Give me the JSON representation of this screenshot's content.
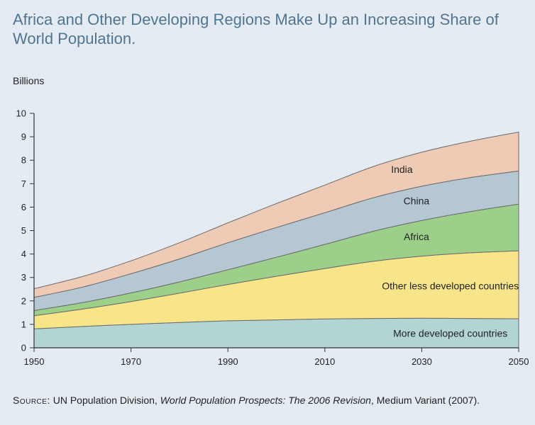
{
  "title": "Africa and Other Developing Regions Make Up an Increasing Share of World Population.",
  "source": {
    "label": "Source:",
    "text1": " UN Population Division, ",
    "italic": "World Population Prospects: The 2006 Revision",
    "text2": ", Medium Variant (2007)."
  },
  "chart_data": {
    "type": "area",
    "stacked": true,
    "title": "Africa and Other Developing Regions Make Up an Increasing Share of World Population.",
    "ylabel": "Billions",
    "xlabel": "",
    "x": [
      1950,
      1960,
      1970,
      1980,
      1990,
      2000,
      2010,
      2020,
      2030,
      2040,
      2050
    ],
    "xticks": [
      1950,
      1970,
      1990,
      2010,
      2030,
      2050
    ],
    "yticks": [
      0,
      1,
      2,
      3,
      4,
      5,
      6,
      7,
      8,
      9,
      10
    ],
    "xlim": [
      1950,
      2050
    ],
    "ylim": [
      0,
      10
    ],
    "grid": false,
    "series": [
      {
        "name": "More developed countries",
        "color": "#b2d4d2",
        "values": [
          0.81,
          0.91,
          1.0,
          1.08,
          1.15,
          1.19,
          1.23,
          1.25,
          1.26,
          1.25,
          1.24
        ]
      },
      {
        "name": "Other less developed countries",
        "color": "#f8e58a",
        "values": [
          0.56,
          0.74,
          0.97,
          1.25,
          1.55,
          1.86,
          2.15,
          2.44,
          2.65,
          2.8,
          2.9
        ]
      },
      {
        "name": "Africa",
        "color": "#9ccf8a",
        "values": [
          0.22,
          0.28,
          0.37,
          0.48,
          0.63,
          0.81,
          1.03,
          1.28,
          1.52,
          1.76,
          1.99
        ]
      },
      {
        "name": "China",
        "color": "#b6c7d4",
        "values": [
          0.56,
          0.66,
          0.82,
          0.98,
          1.15,
          1.27,
          1.35,
          1.43,
          1.46,
          1.45,
          1.41
        ]
      },
      {
        "name": "India",
        "color": "#efcbb6",
        "values": [
          0.37,
          0.45,
          0.55,
          0.69,
          0.85,
          1.02,
          1.18,
          1.33,
          1.45,
          1.55,
          1.66
        ]
      }
    ]
  }
}
